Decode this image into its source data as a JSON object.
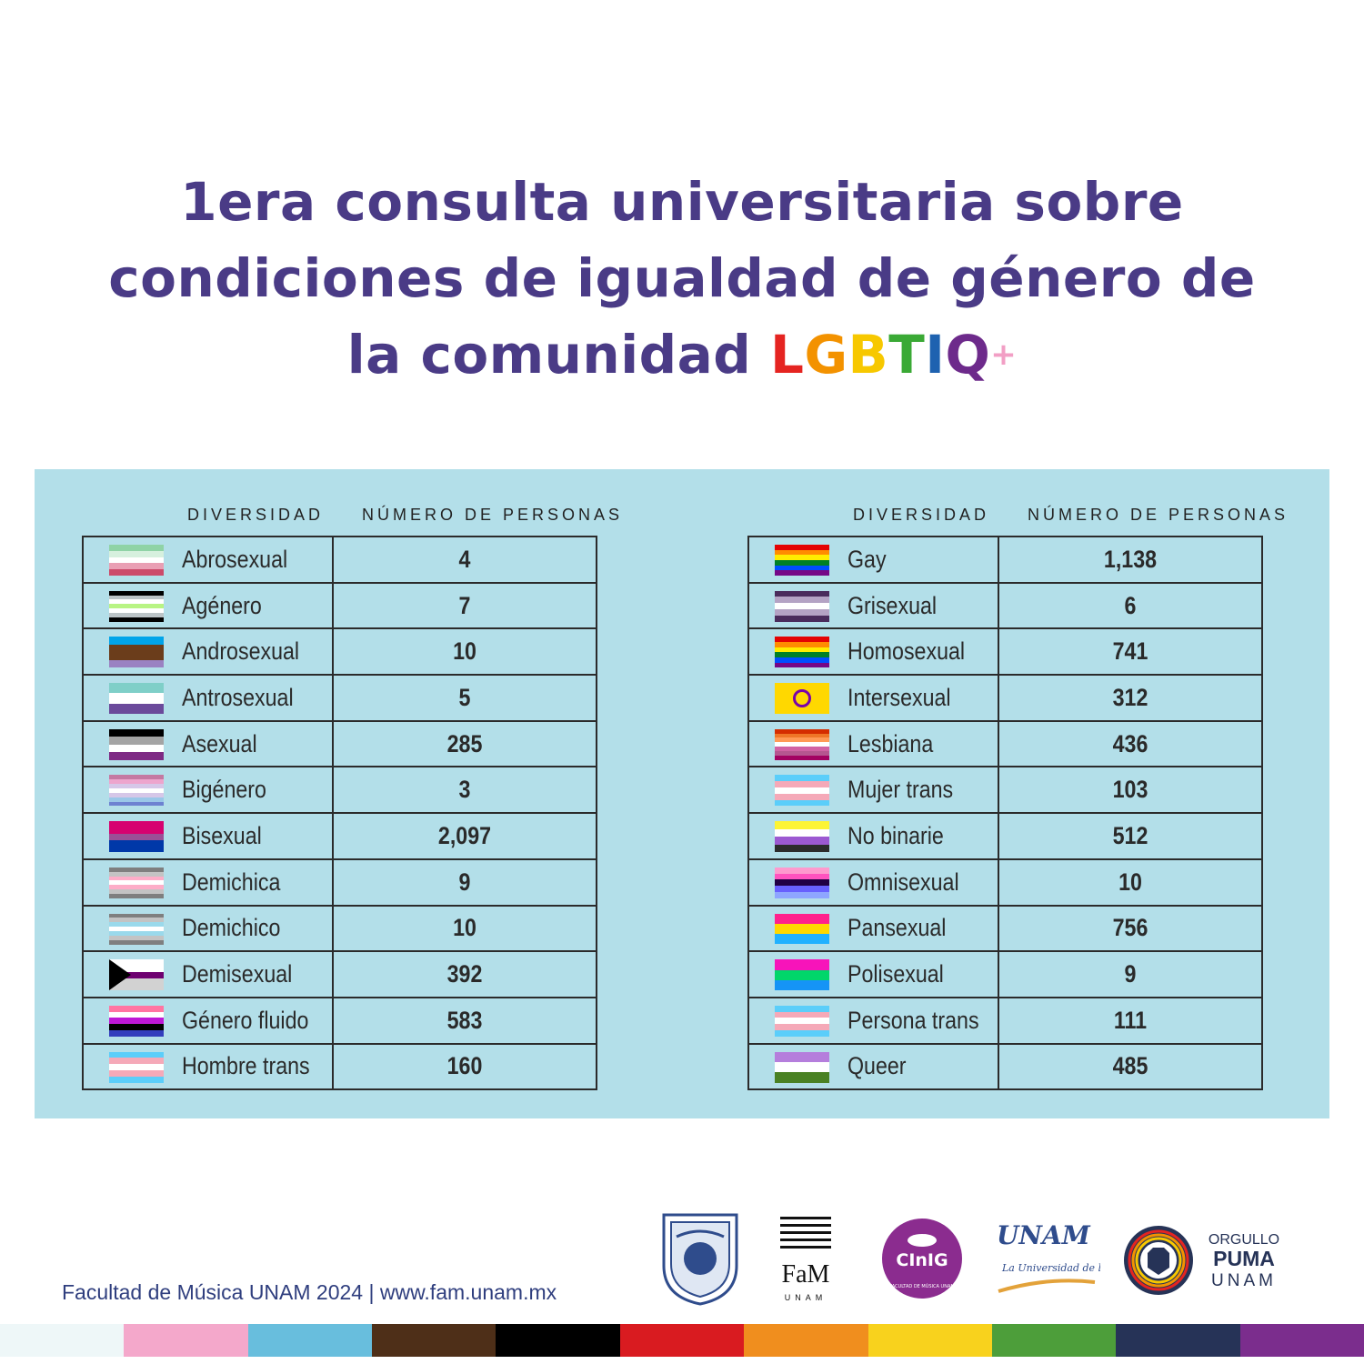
{
  "title": {
    "line1": "1era consulta universitaria sobre",
    "line2": "condiciones de igualdad de género de",
    "line3": "la comunidad",
    "rainbow": [
      {
        "ch": "L",
        "color": "#e52421"
      },
      {
        "ch": "G",
        "color": "#f39200"
      },
      {
        "ch": "B",
        "color": "#f7c800"
      },
      {
        "ch": "T",
        "color": "#3aa935"
      },
      {
        "ch": "I",
        "color": "#1e62b0"
      },
      {
        "ch": "Q",
        "color": "#6d2a8b"
      },
      {
        "ch": "+",
        "color": "#f29fc5"
      }
    ]
  },
  "headers": {
    "col1": "DIVERSIDAD",
    "col2": "NÚMERO DE PERSONAS"
  },
  "left_table": [
    {
      "name": "Abrosexual",
      "value": "4",
      "flag": [
        "#8fd3a6",
        "#d6f0de",
        "#ffffff",
        "#e99fb4",
        "#cc4a6a"
      ]
    },
    {
      "name": "Agénero",
      "value": "7",
      "flag": [
        "#000000",
        "#bcc4c7",
        "#ffffff",
        "#b8f483",
        "#ffffff",
        "#bcc4c7",
        "#000000"
      ]
    },
    {
      "name": "Androsexual",
      "value": "10",
      "flag": [
        "#01a4e9",
        "#6b3d1b",
        "#6b3d1b",
        "#9a82c2"
      ]
    },
    {
      "name": "Antrosexual",
      "value": "5",
      "flag": [
        "#7fcfc8",
        "#ffffff",
        "#6b4a9b"
      ]
    },
    {
      "name": "Asexual",
      "value": "285",
      "flag": [
        "#000000",
        "#a4a4a4",
        "#ffffff",
        "#7e2a84"
      ]
    },
    {
      "name": "Bigénero",
      "value": "3",
      "flag": [
        "#c479a2",
        "#eda5cd",
        "#d6c7e8",
        "#ffffff",
        "#d6c7e8",
        "#9ac7e8",
        "#6d82d1"
      ]
    },
    {
      "name": "Bisexual",
      "value": "2,097",
      "flag": [
        "#d60270",
        "#d60270",
        "#9b4f96",
        "#0038a8",
        "#0038a8"
      ]
    },
    {
      "name": "Demichica",
      "value": "9",
      "flag": [
        "#7f7f7f",
        "#c3c3c3",
        "#fdadc8",
        "#ffffff",
        "#fdadc8",
        "#c3c3c3",
        "#7f7f7f"
      ]
    },
    {
      "name": "Demichico",
      "value": "10",
      "flag": [
        "#7f7f7f",
        "#c3c3c3",
        "#9ad9eb",
        "#ffffff",
        "#9ad9eb",
        "#c3c3c3",
        "#7f7f7f"
      ]
    },
    {
      "name": "Demisexual",
      "value": "392",
      "flag": [
        "#ffffff",
        "#ffffff",
        "#6e0070",
        "#d2d2d2",
        "#d2d2d2"
      ]
    },
    {
      "name": "Género fluido",
      "value": "583",
      "flag": [
        "#ff75a2",
        "#ffffff",
        "#be18d6",
        "#000000",
        "#333ebd"
      ]
    },
    {
      "name": "Hombre trans",
      "value": "160",
      "flag": [
        "#5bcefa",
        "#f5a9b8",
        "#ffffff",
        "#f5a9b8",
        "#5bcefa"
      ]
    }
  ],
  "right_table": [
    {
      "name": "Gay",
      "value": "1,138",
      "flag": [
        "#e40303",
        "#ff8c00",
        "#ffed00",
        "#008026",
        "#004dff",
        "#750787"
      ]
    },
    {
      "name": "Grisexual",
      "value": "6",
      "flag": [
        "#4a2c5c",
        "#b4a3c4",
        "#ffffff",
        "#b4a3c4",
        "#4a2c5c"
      ]
    },
    {
      "name": "Homosexual",
      "value": "741",
      "flag": [
        "#e40303",
        "#ff8c00",
        "#ffed00",
        "#008026",
        "#004dff",
        "#750787"
      ]
    },
    {
      "name": "Intersexual",
      "value": "312",
      "flag": [
        "#ffd800"
      ]
    },
    {
      "name": "Lesbiana",
      "value": "436",
      "flag": [
        "#d52d00",
        "#ef7627",
        "#ff9a56",
        "#ffffff",
        "#d162a4",
        "#b55690",
        "#a30262"
      ]
    },
    {
      "name": "Mujer trans",
      "value": "103",
      "flag": [
        "#5bcefa",
        "#f5a9b8",
        "#ffffff",
        "#f5a9b8",
        "#5bcefa"
      ]
    },
    {
      "name": "No binarie",
      "value": "512",
      "flag": [
        "#fcf434",
        "#ffffff",
        "#9c59d1",
        "#2c2c2c"
      ]
    },
    {
      "name": "Omnisexual",
      "value": "10",
      "flag": [
        "#fe9ace",
        "#ff53bf",
        "#200044",
        "#6760fe",
        "#8ea6ff"
      ]
    },
    {
      "name": "Pansexual",
      "value": "756",
      "flag": [
        "#ff218c",
        "#ffd800",
        "#21b1ff"
      ]
    },
    {
      "name": "Polisexual",
      "value": "9",
      "flag": [
        "#f714ba",
        "#01d66a",
        "#1594f6"
      ]
    },
    {
      "name": "Persona trans",
      "value": "111",
      "flag": [
        "#5bcefa",
        "#f5a9b8",
        "#ffffff",
        "#f5a9b8",
        "#5bcefa"
      ]
    },
    {
      "name": "Queer",
      "value": "485",
      "flag": [
        "#b57edc",
        "#ffffff",
        "#4a8123"
      ]
    }
  ],
  "footer": {
    "text": "Facultad de Música UNAM 2024 | www.fam.unam.mx",
    "logo_fam": "FaM",
    "logo_fam_sub": "UNAM",
    "logo_cinig": "CInIG",
    "logo_cinig_sub": "FACULTAD DE MÚSICA UNAM",
    "logo_unam": "UNAM",
    "logo_unam_sub": "La Universidad de la Nación",
    "logo_puma_1": "ORGULLO",
    "logo_puma_2": "PUMA",
    "logo_puma_3": "UNAM"
  },
  "stripe_colors": [
    "#eef7f8",
    "#f4a8cb",
    "#68bedd",
    "#4e2f18",
    "#000000",
    "#d91b20",
    "#f08e1e",
    "#f8d21d",
    "#4d9e3a",
    "#263357",
    "#7b2d8d"
  ]
}
